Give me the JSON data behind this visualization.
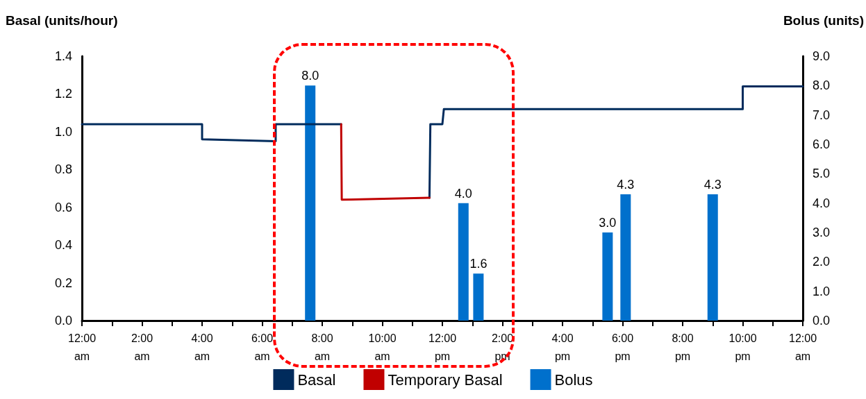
{
  "chart_data": {
    "type": "bar",
    "ylabel": "Basal (units/hour)",
    "y2label": "Bolus (units)",
    "xlim": [
      0,
      24
    ],
    "xticks": [
      {
        "value": 0,
        "label": "12:00 am"
      },
      {
        "value": 1,
        "label": null
      },
      {
        "value": 2,
        "label": "2:00 am"
      },
      {
        "value": 3,
        "label": null
      },
      {
        "value": 4,
        "label": "4:00 am"
      },
      {
        "value": 5,
        "label": null
      },
      {
        "value": 6,
        "label": "6:00 am"
      },
      {
        "value": 7,
        "label": null
      },
      {
        "value": 8,
        "label": "8:00 am"
      },
      {
        "value": 9,
        "label": null
      },
      {
        "value": 10,
        "label": "10:00 am"
      },
      {
        "value": 11,
        "label": null
      },
      {
        "value": 12,
        "label": "12:00 pm"
      },
      {
        "value": 13,
        "label": null
      },
      {
        "value": 14,
        "label": "2:00 pm"
      },
      {
        "value": 15,
        "label": null
      },
      {
        "value": 16,
        "label": "4:00 pm"
      },
      {
        "value": 17,
        "label": null
      },
      {
        "value": 18,
        "label": "6:00 pm"
      },
      {
        "value": 19,
        "label": null
      },
      {
        "value": 20,
        "label": "8:00 pm"
      },
      {
        "value": 21,
        "label": null
      },
      {
        "value": 22,
        "label": "10:00 pm"
      },
      {
        "value": 23,
        "label": null
      },
      {
        "value": 24,
        "label": "12:00 am"
      }
    ],
    "ylim": [
      0,
      1.4
    ],
    "yticks": [
      {
        "value": 0,
        "label": "0.0"
      },
      {
        "value": 0.2,
        "label": "0.2"
      },
      {
        "value": 0.4,
        "label": "0.4"
      },
      {
        "value": 0.6,
        "label": "0.6"
      },
      {
        "value": 0.8,
        "label": "0.8"
      },
      {
        "value": 1,
        "label": "1.0"
      },
      {
        "value": 1.2,
        "label": "1.2"
      },
      {
        "value": 1.4,
        "label": "1.4"
      }
    ],
    "y2lim": [
      0,
      9
    ],
    "y2ticks": [
      {
        "value": 0,
        "label": "0.0"
      },
      {
        "value": 1,
        "label": "1.0"
      },
      {
        "value": 2,
        "label": "2.0"
      },
      {
        "value": 3,
        "label": "3.0"
      },
      {
        "value": 4,
        "label": "4.0"
      },
      {
        "value": 5,
        "label": "5.0"
      },
      {
        "value": 6,
        "label": "6.0"
      },
      {
        "value": 7,
        "label": "7.0"
      },
      {
        "value": 8,
        "label": "8.0"
      },
      {
        "value": 9,
        "label": "9.0"
      }
    ],
    "legend": "bottom",
    "grid": false,
    "marker": "none",
    "line_style": "solid",
    "series": [
      {
        "name": "Basal",
        "type": "line",
        "color": "#002b5c",
        "x": [
          0,
          4.0,
          4.0,
          6.45,
          6.45,
          8.63,
          null,
          11.57,
          11.6,
          12.0,
          12.05,
          22.0,
          22.0,
          24
        ],
        "values": [
          1.04,
          1.04,
          0.96,
          0.95,
          1.04,
          1.04,
          null,
          0.65,
          1.04,
          1.04,
          1.12,
          1.12,
          1.24,
          1.24
        ]
      },
      {
        "name": "Temporary Basal",
        "type": "line",
        "color": "#c00000",
        "x": [
          8.63,
          8.65,
          11.57
        ],
        "values": [
          1.04,
          0.64,
          0.65
        ]
      },
      {
        "name": "Bolus",
        "axis": "y2",
        "color": "#0070cc",
        "x": [
          7.6,
          12.7,
          13.2,
          17.5,
          18.1,
          21.0
        ],
        "values": [
          8.0,
          4.0,
          1.6,
          3.0,
          4.3,
          4.3
        ],
        "value_labels": [
          "8.0",
          "4.0",
          "1.6",
          "3.0",
          "4.3",
          "4.3"
        ]
      }
    ]
  }
}
